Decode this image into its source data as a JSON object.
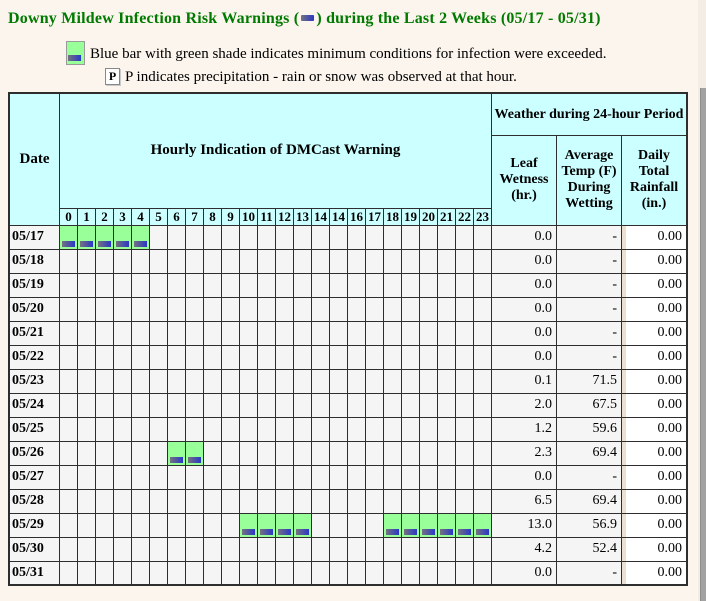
{
  "title": {
    "prefix": "Downy Mildew Infection Risk Warnings (",
    "suffix": ") during the Last 2 Weeks (05/17 - 05/31)"
  },
  "legend": {
    "blue_bar_line": "Blue bar with green shade indicates minimum conditions for infection were exceeded.",
    "p_icon": "P",
    "precip_line": "P indicates precipitation - rain or snow was observed at that hour."
  },
  "table": {
    "headers": {
      "date": "Date",
      "hourly": "Hourly Indication of DMCast Warning",
      "weather": "Weather during 24-hour Period",
      "leaf": "Leaf Wetness (hr.)",
      "temp": "Average Temp (F) During Wetting",
      "rain": "Daily Total Rainfall (in.)",
      "hours": [
        "0",
        "1",
        "2",
        "3",
        "4",
        "5",
        "6",
        "7",
        "8",
        "9",
        "10",
        "11",
        "12",
        "13",
        "14",
        "14",
        "16",
        "17",
        "18",
        "19",
        "20",
        "21",
        "22",
        "23"
      ]
    },
    "rows": [
      {
        "date": "05/17",
        "warn_hours": [
          0,
          1,
          2,
          3,
          4
        ],
        "leaf": "0.0",
        "temp": "-",
        "rain": "0.00"
      },
      {
        "date": "05/18",
        "warn_hours": [],
        "leaf": "0.0",
        "temp": "-",
        "rain": "0.00"
      },
      {
        "date": "05/19",
        "warn_hours": [],
        "leaf": "0.0",
        "temp": "-",
        "rain": "0.00"
      },
      {
        "date": "05/20",
        "warn_hours": [],
        "leaf": "0.0",
        "temp": "-",
        "rain": "0.00"
      },
      {
        "date": "05/21",
        "warn_hours": [],
        "leaf": "0.0",
        "temp": "-",
        "rain": "0.00"
      },
      {
        "date": "05/22",
        "warn_hours": [],
        "leaf": "0.0",
        "temp": "-",
        "rain": "0.00"
      },
      {
        "date": "05/23",
        "warn_hours": [],
        "leaf": "0.1",
        "temp": "71.5",
        "rain": "0.00"
      },
      {
        "date": "05/24",
        "warn_hours": [],
        "leaf": "2.0",
        "temp": "67.5",
        "rain": "0.00"
      },
      {
        "date": "05/25",
        "warn_hours": [],
        "leaf": "1.2",
        "temp": "59.6",
        "rain": "0.00"
      },
      {
        "date": "05/26",
        "warn_hours": [
          6,
          7
        ],
        "leaf": "2.3",
        "temp": "69.4",
        "rain": "0.00"
      },
      {
        "date": "05/27",
        "warn_hours": [],
        "leaf": "0.0",
        "temp": "-",
        "rain": "0.00"
      },
      {
        "date": "05/28",
        "warn_hours": [],
        "leaf": "6.5",
        "temp": "69.4",
        "rain": "0.00"
      },
      {
        "date": "05/29",
        "warn_hours": [
          10,
          11,
          12,
          13,
          18,
          19,
          20,
          21,
          22,
          23
        ],
        "leaf": "13.0",
        "temp": "56.9",
        "rain": "0.00"
      },
      {
        "date": "05/30",
        "warn_hours": [],
        "leaf": "4.2",
        "temp": "52.4",
        "rain": "0.00"
      },
      {
        "date": "05/31",
        "warn_hours": [],
        "leaf": "0.0",
        "temp": "-",
        "rain": "0.00"
      }
    ]
  },
  "colors": {
    "title_green": "#007a00",
    "header_cyan": "#ccffff",
    "warning_green": "#99ff99",
    "blue_bar_start": "#73737e",
    "blue_bar_end": "#2a38c8",
    "grid_border": "#2e2e2e",
    "cell_gray": "#f5f5f5",
    "rain_strip_beige": "#ece0d0",
    "page_background": "#fcf5ed",
    "scrollbar_gray": "#a2a2a2"
  }
}
